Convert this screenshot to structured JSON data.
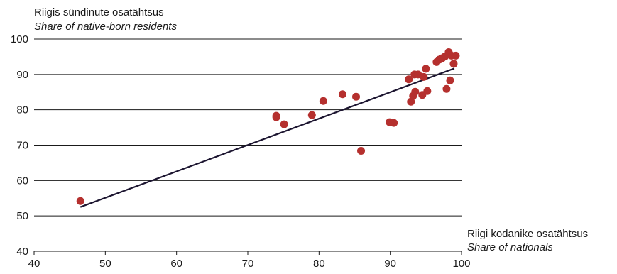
{
  "chart_data": {
    "type": "scatter",
    "ylabel": "Riigis sündinute osatähtsus",
    "ylabel_en": "Share of native-born residents",
    "xlabel": "Riigi kodanike osatähtsus",
    "xlabel_en": "Share of nationals",
    "xlim": [
      40,
      100
    ],
    "ylim": [
      40,
      100
    ],
    "x_ticks": [
      40,
      50,
      60,
      70,
      80,
      90,
      100
    ],
    "y_ticks": [
      40,
      50,
      60,
      70,
      80,
      90,
      100
    ],
    "grid": "horizontal",
    "colors": {
      "points": "#b5302e",
      "trendline": "#1c1530",
      "grid": "#1a1a1a"
    },
    "points": [
      {
        "x": 46.5,
        "y": 54.2
      },
      {
        "x": 74.0,
        "y": 78.3
      },
      {
        "x": 74.0,
        "y": 77.9
      },
      {
        "x": 75.1,
        "y": 75.9
      },
      {
        "x": 79.0,
        "y": 78.5
      },
      {
        "x": 80.6,
        "y": 82.5
      },
      {
        "x": 83.3,
        "y": 84.4
      },
      {
        "x": 85.2,
        "y": 83.7
      },
      {
        "x": 85.9,
        "y": 68.4
      },
      {
        "x": 89.9,
        "y": 76.5
      },
      {
        "x": 90.5,
        "y": 76.3
      },
      {
        "x": 92.6,
        "y": 88.6
      },
      {
        "x": 92.9,
        "y": 82.3
      },
      {
        "x": 93.2,
        "y": 83.9
      },
      {
        "x": 93.4,
        "y": 90.0
      },
      {
        "x": 93.5,
        "y": 85.1
      },
      {
        "x": 93.9,
        "y": 90.0
      },
      {
        "x": 94.5,
        "y": 84.2
      },
      {
        "x": 94.7,
        "y": 89.3
      },
      {
        "x": 95.0,
        "y": 91.6
      },
      {
        "x": 95.2,
        "y": 85.3
      },
      {
        "x": 96.5,
        "y": 93.5
      },
      {
        "x": 96.9,
        "y": 94.2
      },
      {
        "x": 97.3,
        "y": 94.6
      },
      {
        "x": 97.7,
        "y": 95.1
      },
      {
        "x": 97.9,
        "y": 85.9
      },
      {
        "x": 98.2,
        "y": 96.3
      },
      {
        "x": 98.4,
        "y": 88.3
      },
      {
        "x": 98.6,
        "y": 95.3
      },
      {
        "x": 98.9,
        "y": 93.0
      },
      {
        "x": 99.2,
        "y": 95.3
      }
    ],
    "trendline": [
      {
        "x": 46.5,
        "y": 52.5
      },
      {
        "x": 99.0,
        "y": 91.7
      }
    ]
  }
}
